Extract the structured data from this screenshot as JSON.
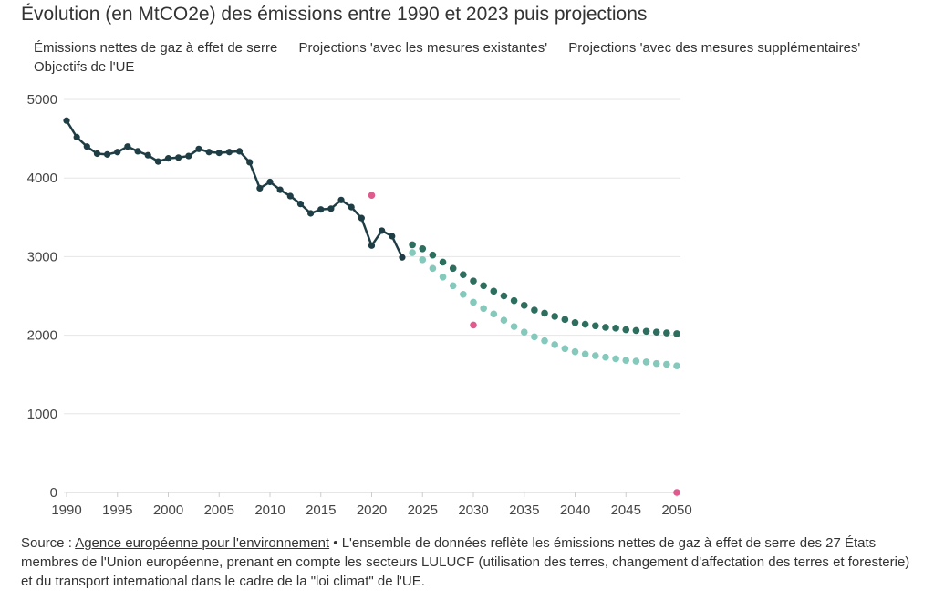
{
  "page_title": "Évolution (en MtCO2e) des émissions entre 1990 et 2023 puis projections",
  "legend": {
    "items": [
      "Émissions nettes de gaz à effet de serre",
      "Projections 'avec les mesures existantes'",
      "Projections 'avec des mesures supplémentaires'",
      "Objectifs de l'UE"
    ]
  },
  "footer": {
    "prefix": "Source : ",
    "link_text": "Agence européenne pour l'environnement",
    "text": " • L'ensemble de données reflète les émissions nettes de gaz à effet de serre des 27 États membres de l'Union européenne, prenant en compte les secteurs LULUCF (utilisation des terres, changement d'affectation des terres et foresterie) et du transport international dans le cadre de la \"loi climat\" de l'UE."
  },
  "chart_data": {
    "type": "line",
    "title": "Évolution (en MtCO2e) des émissions entre 1990 et 2023 puis projections",
    "xlim": [
      1990,
      2050
    ],
    "ylim": [
      0,
      5000
    ],
    "x_ticks": [
      1990,
      1995,
      2000,
      2005,
      2010,
      2015,
      2020,
      2025,
      2030,
      2035,
      2040,
      2045,
      2050
    ],
    "y_ticks": [
      0,
      1000,
      2000,
      3000,
      4000,
      5000
    ],
    "grid": true,
    "legend_position": "top",
    "series": [
      {
        "name": "Émissions nettes de gaz à effet de serre",
        "style": "line-markers",
        "color": "#1f3d45",
        "x": [
          1990,
          1991,
          1992,
          1993,
          1994,
          1995,
          1996,
          1997,
          1998,
          1999,
          2000,
          2001,
          2002,
          2003,
          2004,
          2005,
          2006,
          2007,
          2008,
          2009,
          2010,
          2011,
          2012,
          2013,
          2014,
          2015,
          2016,
          2017,
          2018,
          2019,
          2020,
          2021,
          2022,
          2023
        ],
        "y": [
          4730,
          4520,
          4400,
          4310,
          4300,
          4330,
          4400,
          4340,
          4290,
          4210,
          4250,
          4260,
          4280,
          4370,
          4330,
          4320,
          4330,
          4340,
          4200,
          3870,
          3950,
          3850,
          3770,
          3670,
          3550,
          3600,
          3610,
          3720,
          3630,
          3490,
          3140,
          3330,
          3260,
          2990
        ]
      },
      {
        "name": "Projections 'avec les mesures existantes'",
        "style": "dots",
        "color": "#2e6e5e",
        "x": [
          2024,
          2025,
          2026,
          2027,
          2028,
          2029,
          2030,
          2031,
          2032,
          2033,
          2034,
          2035,
          2036,
          2037,
          2038,
          2039,
          2040,
          2041,
          2042,
          2043,
          2044,
          2045,
          2046,
          2047,
          2048,
          2049,
          2050
        ],
        "y": [
          3150,
          3100,
          3020,
          2930,
          2850,
          2770,
          2690,
          2630,
          2560,
          2500,
          2440,
          2380,
          2320,
          2280,
          2240,
          2200,
          2160,
          2140,
          2120,
          2100,
          2090,
          2070,
          2060,
          2050,
          2040,
          2030,
          2020
        ]
      },
      {
        "name": "Projections 'avec des mesures supplémentaires'",
        "style": "dots",
        "color": "#84c9bb",
        "x": [
          2024,
          2025,
          2026,
          2027,
          2028,
          2029,
          2030,
          2031,
          2032,
          2033,
          2034,
          2035,
          2036,
          2037,
          2038,
          2039,
          2040,
          2041,
          2042,
          2043,
          2044,
          2045,
          2046,
          2047,
          2048,
          2049,
          2050
        ],
        "y": [
          3050,
          2960,
          2850,
          2740,
          2630,
          2520,
          2420,
          2340,
          2270,
          2190,
          2110,
          2040,
          1980,
          1930,
          1880,
          1830,
          1790,
          1760,
          1740,
          1720,
          1700,
          1680,
          1670,
          1660,
          1640,
          1630,
          1610
        ]
      },
      {
        "name": "Objectifs de l'UE",
        "style": "dots",
        "color": "#e05a8e",
        "x": [
          2020,
          2030,
          2050
        ],
        "y": [
          3780,
          2130,
          0
        ]
      }
    ]
  }
}
